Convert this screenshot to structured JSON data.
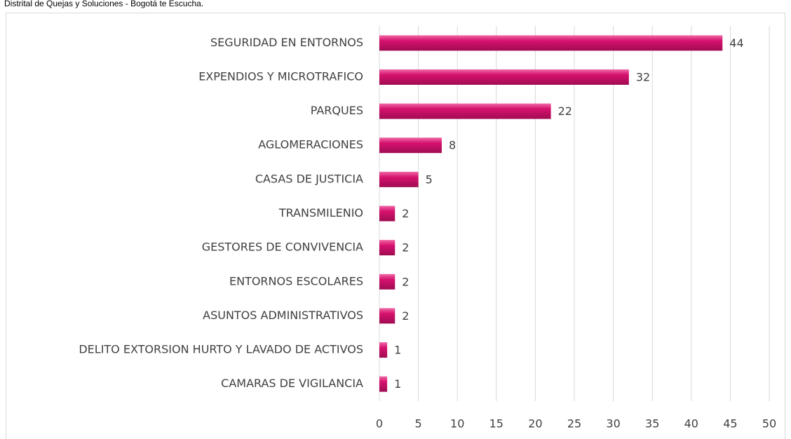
{
  "chart_data": {
    "type": "bar",
    "orientation": "horizontal",
    "subtitle": "Distrital de Quejas y Soluciones - Bogotá te Escucha.",
    "categories": [
      "SEGURIDAD EN ENTORNOS",
      "EXPENDIOS Y MICROTRAFICO",
      "PARQUES",
      "AGLOMERACIONES",
      "CASAS DE JUSTICIA",
      "TRANSMILENIO",
      "GESTORES DE CONVIVENCIA",
      "ENTORNOS ESCOLARES",
      "ASUNTOS ADMINISTRATIVOS",
      "DELITO EXTORSION HURTO Y LAVADO DE ACTIVOS",
      "CAMARAS DE VIGILANCIA"
    ],
    "values": [
      44,
      32,
      22,
      8,
      5,
      2,
      2,
      2,
      2,
      1,
      1
    ],
    "color": "#d6126f",
    "xlim": [
      0,
      50
    ],
    "xticks": [
      0,
      5,
      10,
      15,
      20,
      25,
      30,
      35,
      40,
      45,
      50
    ],
    "grid": true
  }
}
